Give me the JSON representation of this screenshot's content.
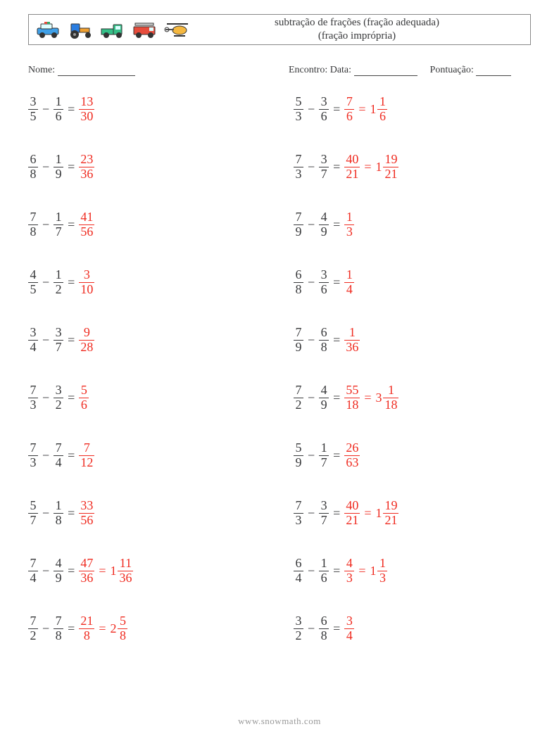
{
  "title_line1": "subtração de frações (fração adequada)",
  "title_line2": "(fração imprópria)",
  "info": {
    "name_label": "Nome:",
    "encounter_label": "Encontro: Data:",
    "score_label": "Pontuação:"
  },
  "colors": {
    "text": "#37383a",
    "answer": "#ef2a1f",
    "border": "#888888",
    "background": "#ffffff",
    "footer": "#999999"
  },
  "blank_widths": {
    "name": 110,
    "date": 90,
    "score": 50
  },
  "font_sizes": {
    "title": 15,
    "info": 14,
    "equation": 18,
    "footer": 13
  },
  "icons": [
    {
      "name": "police-car",
      "body": "#3fa0e8",
      "accent": "#e74c3c",
      "wheel": "#333"
    },
    {
      "name": "tractor",
      "body": "#2a7de1",
      "accent": "#f0a030",
      "wheel": "#333"
    },
    {
      "name": "pickup-truck",
      "body": "#35c088",
      "accent": "#666",
      "wheel": "#333"
    },
    {
      "name": "fire-truck",
      "body": "#e74c3c",
      "accent": "#f5c050",
      "wheel": "#333"
    },
    {
      "name": "helicopter",
      "body": "#f5b840",
      "accent": "#555",
      "wheel": "#333"
    }
  ],
  "footer": "www.snowmath.com",
  "columns": [
    [
      {
        "a": [
          3,
          5
        ],
        "b": [
          1,
          6
        ],
        "ans": [
          [
            13,
            30
          ]
        ]
      },
      {
        "a": [
          6,
          8
        ],
        "b": [
          1,
          9
        ],
        "ans": [
          [
            23,
            36
          ]
        ]
      },
      {
        "a": [
          7,
          8
        ],
        "b": [
          1,
          7
        ],
        "ans": [
          [
            41,
            56
          ]
        ]
      },
      {
        "a": [
          4,
          5
        ],
        "b": [
          1,
          2
        ],
        "ans": [
          [
            3,
            10
          ]
        ]
      },
      {
        "a": [
          3,
          4
        ],
        "b": [
          3,
          7
        ],
        "ans": [
          [
            9,
            28
          ]
        ]
      },
      {
        "a": [
          7,
          3
        ],
        "b": [
          3,
          2
        ],
        "ans": [
          [
            5,
            6
          ]
        ]
      },
      {
        "a": [
          7,
          3
        ],
        "b": [
          7,
          4
        ],
        "ans": [
          [
            7,
            12
          ]
        ]
      },
      {
        "a": [
          5,
          7
        ],
        "b": [
          1,
          8
        ],
        "ans": [
          [
            33,
            56
          ]
        ]
      },
      {
        "a": [
          7,
          4
        ],
        "b": [
          4,
          9
        ],
        "ans": [
          [
            47,
            36
          ],
          {
            "w": 1,
            "n": 11,
            "d": 36
          }
        ]
      },
      {
        "a": [
          7,
          2
        ],
        "b": [
          7,
          8
        ],
        "ans": [
          [
            21,
            8
          ],
          {
            "w": 2,
            "n": 5,
            "d": 8
          }
        ]
      }
    ],
    [
      {
        "a": [
          5,
          3
        ],
        "b": [
          3,
          6
        ],
        "ans": [
          [
            7,
            6
          ],
          {
            "w": 1,
            "n": 1,
            "d": 6
          }
        ]
      },
      {
        "a": [
          7,
          3
        ],
        "b": [
          3,
          7
        ],
        "ans": [
          [
            40,
            21
          ],
          {
            "w": 1,
            "n": 19,
            "d": 21
          }
        ]
      },
      {
        "a": [
          7,
          9
        ],
        "b": [
          4,
          9
        ],
        "ans": [
          [
            1,
            3
          ]
        ]
      },
      {
        "a": [
          6,
          8
        ],
        "b": [
          3,
          6
        ],
        "ans": [
          [
            1,
            4
          ]
        ]
      },
      {
        "a": [
          7,
          9
        ],
        "b": [
          6,
          8
        ],
        "ans": [
          [
            1,
            36
          ]
        ]
      },
      {
        "a": [
          7,
          2
        ],
        "b": [
          4,
          9
        ],
        "ans": [
          [
            55,
            18
          ],
          {
            "w": 3,
            "n": 1,
            "d": 18
          }
        ]
      },
      {
        "a": [
          5,
          9
        ],
        "b": [
          1,
          7
        ],
        "ans": [
          [
            26,
            63
          ]
        ]
      },
      {
        "a": [
          7,
          3
        ],
        "b": [
          3,
          7
        ],
        "ans": [
          [
            40,
            21
          ],
          {
            "w": 1,
            "n": 19,
            "d": 21
          }
        ]
      },
      {
        "a": [
          6,
          4
        ],
        "b": [
          1,
          6
        ],
        "ans": [
          [
            4,
            3
          ],
          {
            "w": 1,
            "n": 1,
            "d": 3
          }
        ]
      },
      {
        "a": [
          3,
          2
        ],
        "b": [
          6,
          8
        ],
        "ans": [
          [
            3,
            4
          ]
        ]
      }
    ]
  ]
}
